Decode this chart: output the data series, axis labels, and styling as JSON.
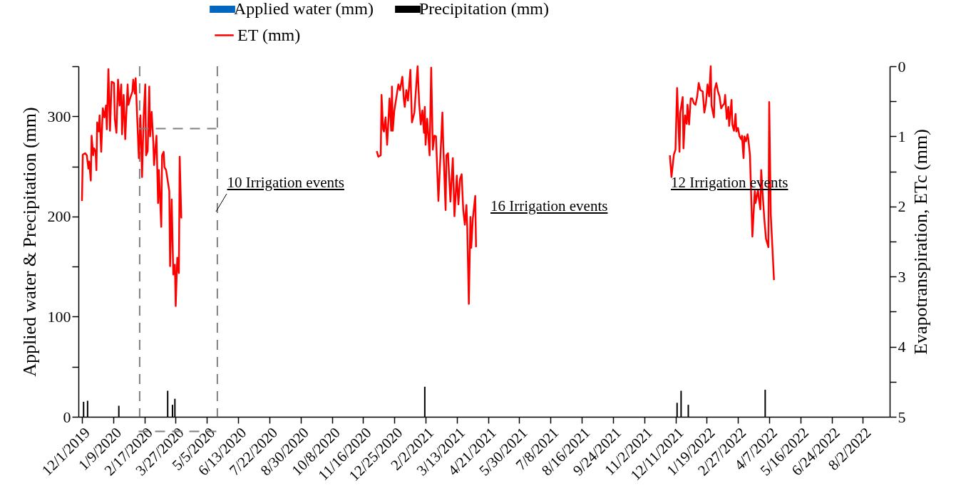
{
  "chart_data": {
    "type": "bar",
    "ylabel": "Applied water & Precipitation (mm)",
    "y2label": "Evapotranspiration, ETc (mm)",
    "xlim": [
      "2019-12-01",
      "2022-08-31"
    ],
    "xticks": [
      {
        "value": "2019-12-01",
        "label": "12/1/2019"
      },
      {
        "value": "2020-01-09",
        "label": "1/9/2020"
      },
      {
        "value": "2020-02-17",
        "label": "2/17/2020"
      },
      {
        "value": "2020-03-27",
        "label": "3/27/2020"
      },
      {
        "value": "2020-05-05",
        "label": "5/5/2020"
      },
      {
        "value": "2020-06-13",
        "label": "6/13/2020"
      },
      {
        "value": "2020-07-22",
        "label": "7/22/2020"
      },
      {
        "value": "2020-08-30",
        "label": "8/30/2020"
      },
      {
        "value": "2020-10-08",
        "label": "10/8/2020"
      },
      {
        "value": "2020-11-16",
        "label": "11/16/2020"
      },
      {
        "value": "2020-12-25",
        "label": "12/25/2020"
      },
      {
        "value": "2021-02-02",
        "label": "2/2/2021"
      },
      {
        "value": "2021-03-13",
        "label": "3/13/2021"
      },
      {
        "value": "2021-04-21",
        "label": "4/21/2021"
      },
      {
        "value": "2021-05-30",
        "label": "5/30/2021"
      },
      {
        "value": "2021-07-08",
        "label": "7/8/2021"
      },
      {
        "value": "2021-08-16",
        "label": "8/16/2021"
      },
      {
        "value": "2021-09-24",
        "label": "9/24/2021"
      },
      {
        "value": "2021-11-02",
        "label": "11/2/2021"
      },
      {
        "value": "2021-12-11",
        "label": "12/11/2021"
      },
      {
        "value": "2022-01-19",
        "label": "1/19/2022"
      },
      {
        "value": "2022-02-27",
        "label": "2/27/2022"
      },
      {
        "value": "2022-04-07",
        "label": "4/7/2022"
      },
      {
        "value": "2022-05-16",
        "label": "5/16/2022"
      },
      {
        "value": "2022-06-24",
        "label": "6/24/2022"
      },
      {
        "value": "2022-08-02",
        "label": "8/2/2022"
      }
    ],
    "ylim": [
      0,
      350
    ],
    "yticks": [
      0,
      {
        "value": 50,
        "label": null
      },
      100,
      {
        "value": 150,
        "label": null
      },
      200,
      {
        "value": 250,
        "label": null
      },
      300,
      {
        "value": 350,
        "label": null
      }
    ],
    "y2lim": [
      5,
      0
    ],
    "y2ticks": [
      0,
      {
        "value": 0.5,
        "label": null
      },
      1,
      {
        "value": 1.5,
        "label": null
      },
      2,
      {
        "value": 2.5,
        "label": null
      },
      3,
      {
        "value": 3.5,
        "label": null
      },
      4,
      {
        "value": 4.5,
        "label": null
      },
      5
    ],
    "legend": "top",
    "series": [
      {
        "name": "Applied water (mm)",
        "color": "#0066c0"
      },
      {
        "name": "Precipitation (mm)",
        "color": "#000000",
        "x": [
          "2019-12-03",
          "2019-12-08",
          "2020-01-16",
          "2020-03-17",
          "2020-03-23",
          "2020-03-26",
          "2021-02-01",
          "2021-12-13",
          "2021-12-18",
          "2021-12-27",
          "2022-04-02"
        ],
        "values": [
          15,
          16,
          11,
          26,
          12,
          18,
          30,
          14,
          26,
          12,
          27
        ]
      },
      {
        "name": "ET (mm)",
        "type": "line",
        "axis": "y2",
        "color": "#ff0000",
        "x": [
          "2019-12-01",
          "2019-12-02",
          "2019-12-05",
          "2019-12-07",
          "2019-12-09",
          "2019-12-10",
          "2019-12-12",
          "2019-12-13",
          "2019-12-15",
          "2019-12-16",
          "2019-12-18",
          "2019-12-19",
          "2019-12-20",
          "2019-12-22",
          "2019-12-23",
          "2019-12-25",
          "2019-12-27",
          "2019-12-29",
          "2019-12-31",
          "2020-01-01",
          "2020-01-03",
          "2020-01-05",
          "2020-01-07",
          "2020-01-10",
          "2020-01-11",
          "2020-01-13",
          "2020-01-15",
          "2020-01-17",
          "2020-01-19",
          "2020-01-20",
          "2020-01-22",
          "2020-01-24",
          "2020-01-27",
          "2020-01-28",
          "2020-01-30",
          "2020-02-02",
          "2020-02-03",
          "2020-02-05",
          "2020-02-06",
          "2020-02-08",
          "2020-02-10",
          "2020-02-12",
          "2020-02-14",
          "2020-02-16",
          "2020-02-18",
          "2020-02-19",
          "2020-02-21",
          "2020-02-23",
          "2020-02-24",
          "2020-02-26",
          "2020-02-28",
          "2020-02-29",
          "2020-03-03",
          "2020-03-05",
          "2020-03-06",
          "2020-03-09",
          "2020-03-10",
          "2020-03-12",
          "2020-03-13",
          "2020-03-15",
          "2020-03-19",
          "2020-03-20",
          "2020-03-22",
          "2020-03-24",
          "2020-03-26",
          "2020-03-27",
          "2020-03-29",
          "2020-03-31",
          "2020-04-01",
          "2020-04-03",
          "2020-08-01",
          "2020-12-03",
          "2020-12-05",
          "2020-12-08",
          "2020-12-09",
          "2020-12-11",
          "2020-12-12",
          "2020-12-14",
          "2020-12-16",
          "2020-12-19",
          "2020-12-21",
          "2020-12-22",
          "2020-12-23",
          "2020-12-25",
          "2020-12-30",
          "2021-01-01",
          "2021-01-04",
          "2021-01-06",
          "2021-01-07",
          "2021-01-09",
          "2021-01-11",
          "2021-01-14",
          "2021-01-16",
          "2021-01-19",
          "2021-01-23",
          "2021-01-25",
          "2021-01-27",
          "2021-01-29",
          "2021-01-31",
          "2021-02-01",
          "2021-02-02",
          "2021-02-04",
          "2021-02-07",
          "2021-02-09",
          "2021-02-11",
          "2021-02-13",
          "2021-02-15",
          "2021-02-18",
          "2021-02-23",
          "2021-02-24",
          "2021-02-27",
          "2021-02-28",
          "2021-03-02",
          "2021-03-05",
          "2021-03-08",
          "2021-03-10",
          "2021-03-13",
          "2021-03-15",
          "2021-03-17",
          "2021-03-19",
          "2021-03-21",
          "2021-03-23",
          "2021-03-25",
          "2021-03-26",
          "2021-03-28",
          "2021-03-30",
          "2021-03-31",
          "2021-04-02",
          "2021-04-05",
          "2021-04-06",
          "2021-08-01",
          "2021-12-04",
          "2021-12-06",
          "2021-12-09",
          "2021-12-11",
          "2021-12-13",
          "2021-12-16",
          "2021-12-17",
          "2021-12-20",
          "2021-12-21",
          "2021-12-23",
          "2021-12-25",
          "2021-12-26",
          "2021-12-28",
          "2021-12-30",
          "2022-01-01",
          "2022-01-03",
          "2022-01-05",
          "2022-01-07",
          "2022-01-09",
          "2022-01-11",
          "2022-01-14",
          "2022-01-16",
          "2022-01-18",
          "2022-01-20",
          "2022-01-22",
          "2022-01-24",
          "2022-01-25",
          "2022-01-28",
          "2022-01-29",
          "2022-01-31",
          "2022-02-02",
          "2022-02-04",
          "2022-02-06",
          "2022-02-08",
          "2022-02-10",
          "2022-02-11",
          "2022-02-13",
          "2022-02-15",
          "2022-02-16",
          "2022-02-19",
          "2022-02-20",
          "2022-02-22",
          "2022-02-24",
          "2022-02-25",
          "2022-02-27",
          "2022-03-01",
          "2022-03-03",
          "2022-03-04",
          "2022-03-06",
          "2022-03-07",
          "2022-03-09",
          "2022-03-11",
          "2022-03-12",
          "2022-03-14",
          "2022-03-17",
          "2022-03-20",
          "2022-03-21",
          "2022-03-24",
          "2022-03-25",
          "2022-03-27",
          "2022-03-28",
          "2022-03-30",
          "2022-04-01",
          "2022-04-03",
          "2022-04-06",
          "2022-04-07",
          "2022-04-09",
          "2022-04-13"
        ],
        "values": [
          1.92,
          1.26,
          1.24,
          1.27,
          1.46,
          1.36,
          1.63,
          0.99,
          1.27,
          1.17,
          1.22,
          1.48,
          0.8,
          0.93,
          0.7,
          1.22,
          0.6,
          0.73,
          0.56,
          0.9,
          0.04,
          0.92,
          0.22,
          0.24,
          0.75,
          0.95,
          0.19,
          0.56,
          0.26,
          0.97,
          0.41,
          1.04,
          0.26,
          0.55,
          0.46,
          0.36,
          0.19,
          0.39,
          0.17,
          0.75,
          1.31,
          0.7,
          1.58,
          0.71,
          0.26,
          1.27,
          1.21,
          0.29,
          1.0,
          0.65,
          1.07,
          1.41,
          0.99,
          1.95,
          1.48,
          2.29,
          1.27,
          1.22,
          1.44,
          1.48,
          1.78,
          2.85,
          1.9,
          2.97,
          2.83,
          3.42,
          2.73,
          2.95,
          1.29,
          2.17,
          null,
          1.21,
          1.29,
          1.27,
          0.41,
          0.9,
          0.93,
          0.73,
          1.12,
          0.46,
          0.92,
          0.29,
          0.92,
          0.63,
          0.26,
          0.34,
          0.15,
          0.49,
          0.58,
          0.34,
          0.49,
          0.05,
          0.8,
          0.66,
          0.0,
          0.53,
          0.83,
          0.63,
          0.95,
          0.58,
          1.12,
          0.75,
          1.27,
          0.02,
          1.19,
          0.99,
          1.0,
          1.92,
          0.66,
          1.1,
          2.05,
          1.27,
          1.24,
          1.93,
          1.31,
          2.14,
          1.56,
          1.97,
          1.61,
          1.54,
          2.05,
          2.26,
          1.98,
          2.29,
          3.39,
          2.15,
          2.59,
          2.17,
          1.85,
          2.58,
          null,
          1.27,
          1.58,
          1.26,
          1.19,
          0.31,
          1.22,
          0.66,
          0.44,
          1.17,
          0.7,
          0.82,
          0.55,
          0.83,
          0.46,
          0.46,
          0.53,
          0.55,
          0.44,
          0.24,
          0.34,
          0.36,
          0.66,
          0.53,
          0.26,
          0.43,
          0.0,
          0.56,
          0.73,
          0.33,
          0.24,
          0.36,
          0.43,
          0.6,
          0.56,
          0.53,
          0.41,
          0.75,
          0.58,
          0.85,
          0.48,
          0.83,
          0.92,
          0.68,
          0.93,
          0.88,
          1.0,
          1.04,
          0.99,
          1.31,
          1.0,
          1.07,
          0.97,
          1.04,
          1.27,
          2.43,
          1.78,
          1.95,
          1.76,
          1.88,
          2.04,
          1.48,
          1.85,
          2.19,
          2.46,
          2.58,
          0.51,
          2.12,
          3.05
        ]
      }
    ],
    "ref_lines": [
      {
        "axis": "x",
        "value": "2020-02-11",
        "color": "#808080",
        "line_style": "dashed"
      },
      {
        "axis": "x",
        "value": "2020-05-18",
        "color": "#808080",
        "line_style": "dashed"
      }
    ],
    "annotations": [
      {
        "text": "10 Irrigation events",
        "x": "2020-05-18",
        "y": 205
      },
      "16 Irrigation events",
      "12 Irrigation events"
    ]
  }
}
